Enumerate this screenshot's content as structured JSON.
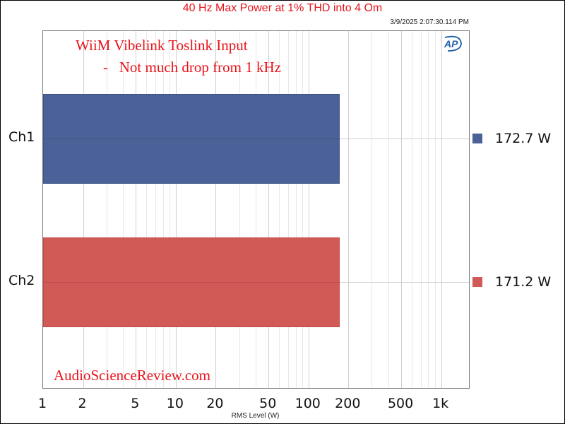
{
  "chart_data": {
    "type": "bar",
    "orientation": "horizontal",
    "title": "40 Hz Max Power at 1% THD into 4 Om",
    "timestamp": "3/9/2025 2:07:30.114 PM",
    "categories": [
      "Ch1",
      "Ch2"
    ],
    "values": [
      172.7,
      171.2
    ],
    "value_labels": [
      "172.7 W",
      "171.2 W"
    ],
    "colors": [
      "#4a6298",
      "#d25a56"
    ],
    "xlabel": "RMS Level (W)",
    "ylabel": "",
    "xscale": "log",
    "xlim": [
      1,
      1660
    ],
    "xticks": [
      {
        "value": 1,
        "label": "1"
      },
      {
        "value": 2,
        "label": "2"
      },
      {
        "value": 5,
        "label": "5"
      },
      {
        "value": 10,
        "label": "10"
      },
      {
        "value": 20,
        "label": "20"
      },
      {
        "value": 50,
        "label": "50"
      },
      {
        "value": 100,
        "label": "100"
      },
      {
        "value": 200,
        "label": "200"
      },
      {
        "value": 500,
        "label": "500"
      },
      {
        "value": 1000,
        "label": "1k"
      }
    ],
    "grid": true,
    "legend_position": "right",
    "annotations": [
      "WiiM Vibelink Toslink Input",
      "-   Not much drop from 1 kHz",
      "AudioScienceReview.com"
    ]
  },
  "header": {
    "title": "40 Hz Max Power at 1% THD into 4 Om",
    "timestamp": "3/9/2025 2:07:30.114 PM"
  },
  "annotations": {
    "line1": "WiiM Vibelink Toslink Input",
    "line2": "-   Not much drop from 1 kHz",
    "watermark": "AudioScienceReview.com"
  },
  "series": [
    {
      "label": "Ch1",
      "value_label": "172.7 W",
      "color": "#4a6298"
    },
    {
      "label": "Ch2",
      "value_label": "171.2 W",
      "color": "#d25a56"
    }
  ],
  "xaxis": {
    "label": "RMS Level (W)",
    "ticks": [
      "1",
      "2",
      "5",
      "10",
      "20",
      "50",
      "100",
      "200",
      "500",
      "1k"
    ]
  },
  "logo": {
    "text": "AP",
    "color": "#1f5fa8"
  }
}
